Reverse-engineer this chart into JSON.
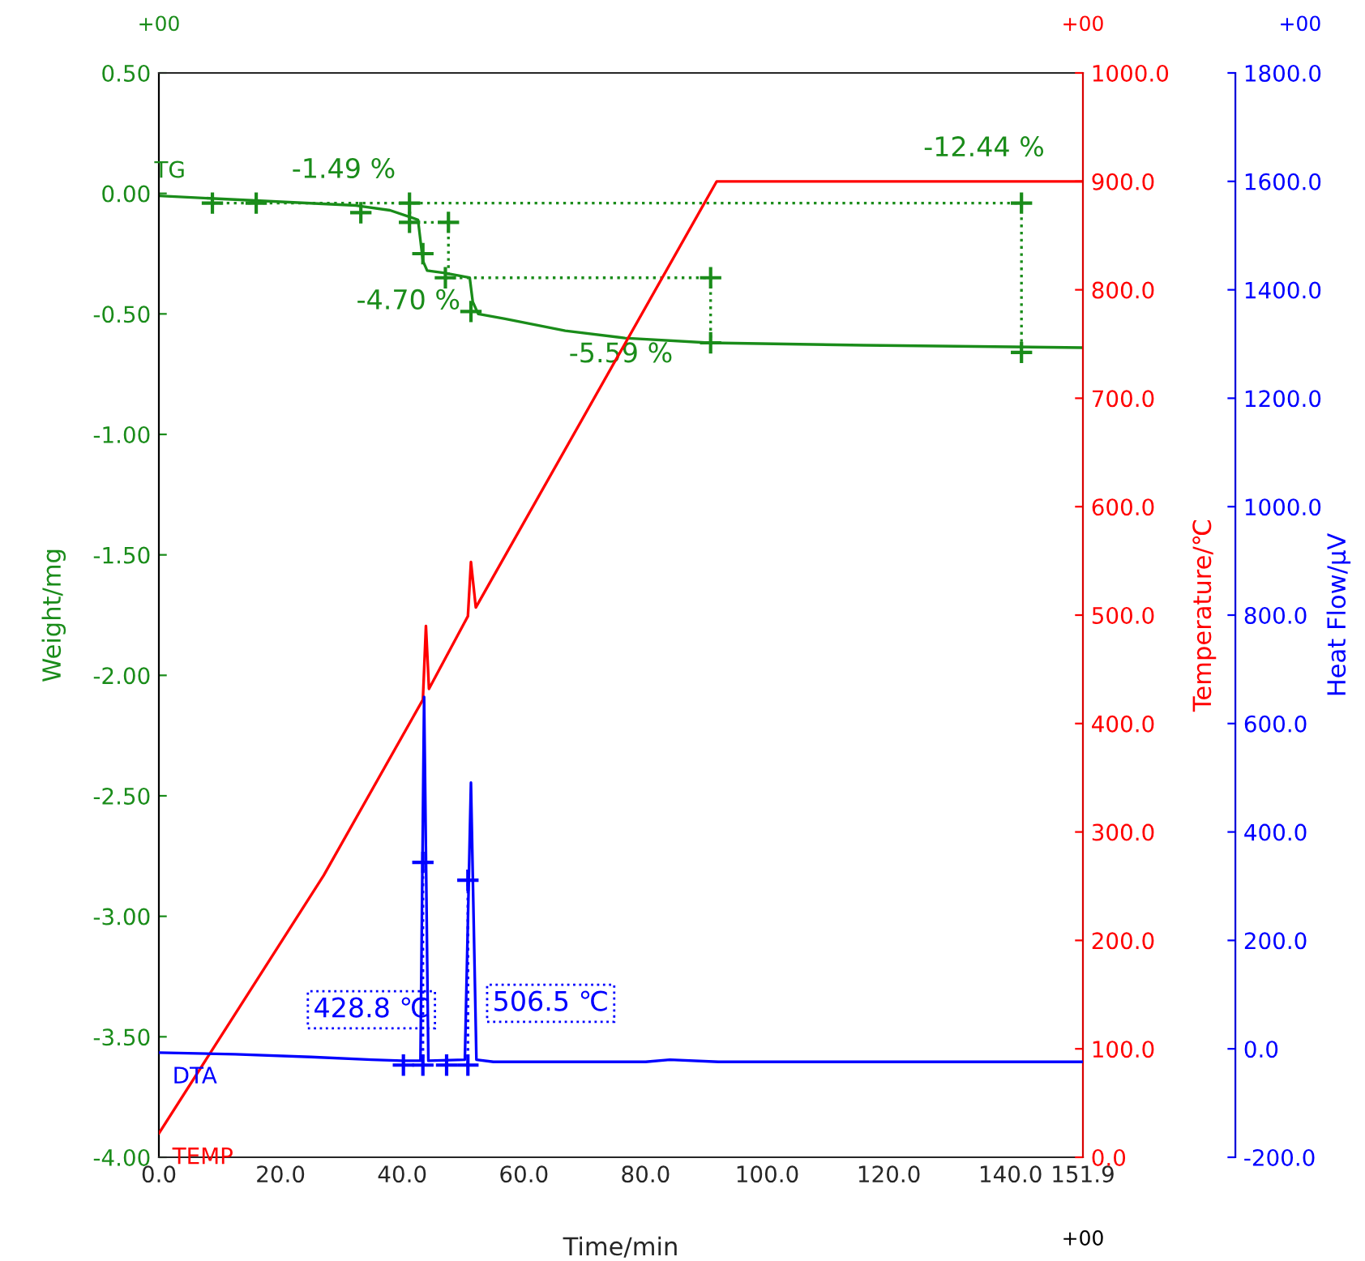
{
  "chart_data": {
    "type": "line",
    "xlabel": "Time/min",
    "ylabel": "Weight/mg",
    "y2label": "Temperature/℃",
    "y3label": "Heat Flow/μV",
    "xlim": [
      0,
      151.9
    ],
    "xticks": [
      {
        "value": 0,
        "label": "0.0"
      },
      {
        "value": 20,
        "label": "20.0"
      },
      {
        "value": 40,
        "label": "40.0"
      },
      {
        "value": 60,
        "label": "60.0"
      },
      {
        "value": 80,
        "label": "80.0"
      },
      {
        "value": 100,
        "label": "100.0"
      },
      {
        "value": 120,
        "label": "120.0"
      },
      {
        "value": 140,
        "label": "140.0"
      },
      {
        "value": 151.9,
        "label": "151.9"
      }
    ],
    "ylim": [
      -4.0,
      0.5
    ],
    "yticks": [
      {
        "value": 0.5,
        "label": "0.50"
      },
      {
        "value": 0,
        "label": "0.00"
      },
      {
        "value": -0.5,
        "label": "-0.50"
      },
      {
        "value": -1.0,
        "label": "-1.00"
      },
      {
        "value": -1.5,
        "label": "-1.50"
      },
      {
        "value": -2.0,
        "label": "-2.00"
      },
      {
        "value": -2.5,
        "label": "-2.50"
      },
      {
        "value": -3.0,
        "label": "-3.00"
      },
      {
        "value": -3.5,
        "label": "-3.50"
      },
      {
        "value": -4.0,
        "label": "-4.00"
      }
    ],
    "y2lim": [
      0,
      1000
    ],
    "y2ticks": [
      {
        "value": 0,
        "label": "0.0"
      },
      {
        "value": 100,
        "label": "100.0"
      },
      {
        "value": 200,
        "label": "200.0"
      },
      {
        "value": 300,
        "label": "300.0"
      },
      {
        "value": 400,
        "label": "400.0"
      },
      {
        "value": 500,
        "label": "500.0"
      },
      {
        "value": 600,
        "label": "600.0"
      },
      {
        "value": 700,
        "label": "700.0"
      },
      {
        "value": 800,
        "label": "800.0"
      },
      {
        "value": 900,
        "label": "900.0"
      },
      {
        "value": 1000,
        "label": "1000.0"
      }
    ],
    "y3lim": [
      -200,
      1800
    ],
    "y3ticks": [
      {
        "value": -200,
        "label": "-200.0"
      },
      {
        "value": 0,
        "label": "0.0"
      },
      {
        "value": 200,
        "label": "200.0"
      },
      {
        "value": 400,
        "label": "400.0"
      },
      {
        "value": 600,
        "label": "600.0"
      },
      {
        "value": 800,
        "label": "800.0"
      },
      {
        "value": 1000,
        "label": "1000.0"
      },
      {
        "value": 1200,
        "label": "1200.0"
      },
      {
        "value": 1400,
        "label": "1400.0"
      },
      {
        "value": 1600,
        "label": "1600.0"
      },
      {
        "value": 1800,
        "label": "1800.0"
      }
    ],
    "grid": false,
    "series": [
      {
        "name": "TG",
        "color": "#1a8c1a",
        "x": [
          0,
          32.4,
          38,
          41.5,
          42.6,
          43.4,
          44.1,
          47,
          51.1,
          51.6,
          52.5,
          56.9,
          66.8,
          76.6,
          90.4,
          115.9,
          151.9
        ],
        "values": [
          -0.01,
          -0.05,
          -0.07,
          -0.1,
          -0.11,
          -0.28,
          -0.32,
          -0.33,
          -0.35,
          -0.45,
          -0.5,
          -0.52,
          -0.57,
          -0.6,
          -0.62,
          -0.63,
          -0.64
        ]
      },
      {
        "name": "TEMP",
        "axis": "y2",
        "color": "#ff0000",
        "x": [
          0,
          27.1,
          43.4,
          43.9,
          44.4,
          50.8,
          51.3,
          52.1,
          91.7,
          151.9
        ],
        "values": [
          22,
          260,
          422,
          490,
          432,
          499,
          549,
          507,
          900,
          900
        ]
      },
      {
        "name": "DTA",
        "axis": "y3",
        "color": "#0000ff",
        "x": [
          0,
          12.5,
          25,
          35,
          40,
          43.0,
          43.6,
          44.3,
          50.3,
          51.3,
          52.2,
          55,
          80,
          84,
          92,
          151.9
        ],
        "values": [
          -7,
          -10,
          -15,
          -20,
          -22,
          -22,
          649,
          -22,
          -20,
          491,
          -20,
          -24,
          -24,
          -20,
          -24,
          -24
        ]
      },
      {
        "type": "line",
        "line_style": "dotted",
        "color": "#1a8c1a",
        "x": [
          8.8,
          141.8,
          null,
          41.2,
          47.6,
          null,
          47.1,
          90.7,
          null,
          47.6,
          47.6,
          null,
          90.7,
          90.7,
          null,
          141.8,
          141.8
        ],
        "values": [
          -0.04,
          -0.04,
          null,
          -0.12,
          -0.12,
          null,
          -0.35,
          -0.35,
          null,
          -0.12,
          -0.35,
          null,
          -0.35,
          -0.62,
          null,
          -0.04,
          -0.66
        ]
      },
      {
        "type": "scatter",
        "marker": "cross",
        "color": "#1a8c1a",
        "x": [
          8.8,
          16.0,
          33.2,
          41.2,
          41.2,
          47.6,
          43.4,
          47.1,
          51.3,
          90.7,
          90.7,
          141.8,
          141.8
        ],
        "values": [
          -0.04,
          -0.04,
          -0.08,
          -0.04,
          -0.12,
          -0.12,
          -0.25,
          -0.35,
          -0.49,
          -0.35,
          -0.62,
          -0.04,
          -0.66
        ]
      },
      {
        "type": "line",
        "axis": "y3",
        "line_style": "dotted",
        "color": "#0000ff",
        "x": [
          43.4,
          43.4,
          null,
          50.8,
          50.8
        ],
        "values": [
          -30,
          344,
          null,
          -30,
          311
        ]
      },
      {
        "type": "scatter",
        "axis": "y3",
        "marker": "cross",
        "color": "#0000ff",
        "x": [
          43.4,
          50.8,
          40.2,
          43.4,
          47.3,
          50.8
        ],
        "values": [
          344,
          311,
          -30,
          -30,
          -30,
          -30
        ]
      }
    ],
    "annotations": [
      "-1.49 %",
      "-4.70 %",
      "-5.59 %",
      "-12.44 %",
      "428.8 ℃",
      "506.5 ℃",
      "+00",
      "+00",
      "+00",
      "+00"
    ]
  }
}
